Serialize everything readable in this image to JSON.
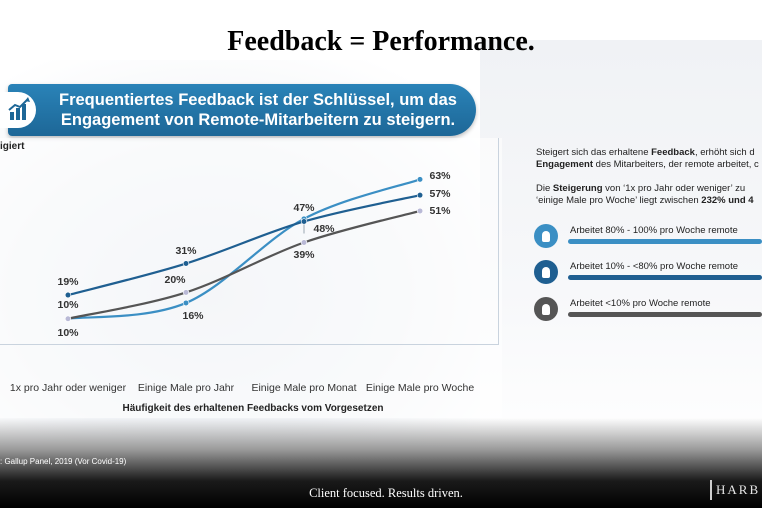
{
  "page": {
    "title": "Feedback = Performance.",
    "banner_text_line1": "Frequentiertes Feedback ist der Schlüssel, um das",
    "banner_text_line2": "Engagement von Remote-Mitarbeitern zu steigern.",
    "banner_icon": "bar-chart-growth-icon",
    "source": ": Gallup Panel, 2019 (Vor Covid-19)",
    "tagline": "Client focused. Results driven.",
    "brand": "HARB"
  },
  "description": {
    "para1_line1_pre": "Steigert sich das erhaltene ",
    "para1_line1_bold": "Feedback",
    "para1_line1_post": ", erhöht sich d",
    "para1_line2_bold": "Engagement",
    "para1_line2_post": " des Mitarbeiters, der remote arbeitet, c",
    "para2_line1_pre": "Die ",
    "para2_line1_bold": "Steigerung",
    "para2_line1_post": " von ‘1x pro Jahr oder weniger’ zu",
    "para2_line2_pre": "‘einige Male pro Woche’ liegt zwischen ",
    "para2_line2_bold": "232% und 4"
  },
  "chart_data": {
    "type": "line",
    "ylabel": "igiert",
    "xlabel": "Häufigkeit des erhaltenen Feedbacks vom Vorgesetzen",
    "categories": [
      "1x pro Jahr oder weniger",
      "Einige  Male pro Jahr",
      "Einige Male pro Monat",
      "Einige Male pro Woche"
    ],
    "ylim": [
      0,
      70
    ],
    "grid": false,
    "series": [
      {
        "name": "Arbeitet 80% - 100% pro Woche remote",
        "values": [
          10,
          16,
          48,
          63
        ],
        "labels": [
          "10%",
          "16%",
          "48%",
          "63%"
        ],
        "color": "#3b8fc4",
        "icon": "remote-worker-icon"
      },
      {
        "name": "Arbeitet 10% - <80% pro Woche remote",
        "values": [
          19,
          31,
          47,
          57
        ],
        "labels": [
          "19%",
          "31%",
          "47%",
          "57%"
        ],
        "color": "#1f5f91",
        "icon": "remote-worker-icon"
      },
      {
        "name": "Arbeitet <10% pro Woche remote",
        "values": [
          10,
          20,
          39,
          51
        ],
        "labels": [
          "10%",
          "20%",
          "39%",
          "51%"
        ],
        "color": "#555555",
        "icon": "office-worker-icon"
      }
    ]
  }
}
